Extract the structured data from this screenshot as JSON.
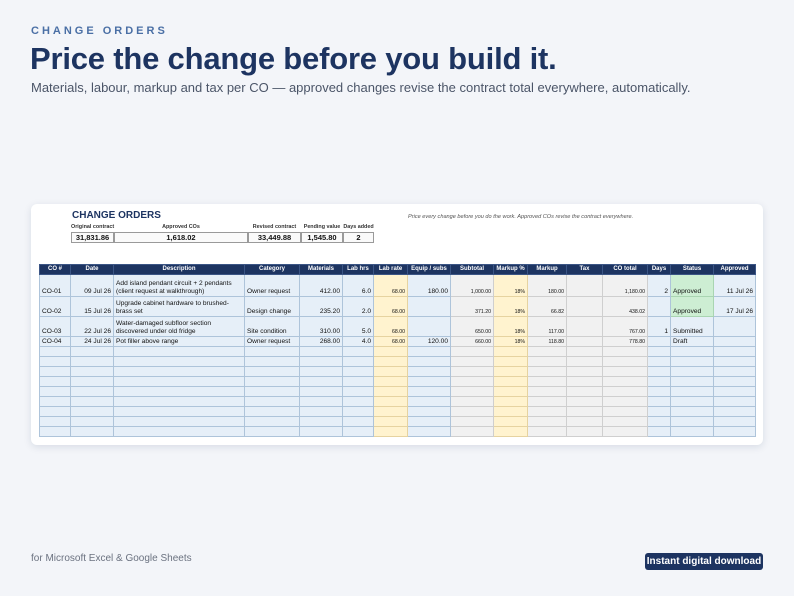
{
  "header": {
    "eyebrow": "CHANGE ORDERS",
    "title": "Price the change before you build it.",
    "subtitle": "Materials, labour, markup and tax per CO — approved changes revise the contract total everywhere, automatically."
  },
  "sheet": {
    "title": "CHANGE ORDERS",
    "note": "Price every change before you do the work. Approved COs revise the contract everywhere.",
    "summary": [
      {
        "label": "Original contract",
        "value": "31,831.86"
      },
      {
        "label": "Approved COs",
        "value": "1,618.02"
      },
      {
        "label": "Revised contract",
        "value": "33,449.88"
      },
      {
        "label": "Pending value",
        "value": "1,545.80"
      },
      {
        "label": "Days added",
        "value": "2"
      }
    ],
    "columns": [
      "CO #",
      "Date",
      "Description",
      "Category",
      "Materials",
      "Lab hrs",
      "Lab rate",
      "Equip / subs",
      "Subtotal",
      "Markup %",
      "Markup",
      "Tax",
      "CO total",
      "Days",
      "Status",
      "Approved"
    ],
    "rows": [
      {
        "co": "CO-01",
        "date": "09 Jul 26",
        "description": "Add island pendant circuit + 2 pendants (client request at walkthrough)",
        "category": "Owner request",
        "materials": "412.00",
        "lab_hrs": "6.0",
        "lab_rate": "68.00",
        "equip": "180.00",
        "subtotal": "1,000.00",
        "markup_pct": "18%",
        "markup": "180.00",
        "tax": "",
        "co_total": "1,180.00",
        "days": "2",
        "status": "Approved",
        "approved": "11 Jul 26"
      },
      {
        "co": "CO-02",
        "date": "15 Jul 26",
        "description": "Upgrade cabinet hardware to brushed-brass set",
        "category": "Design change",
        "materials": "235.20",
        "lab_hrs": "2.0",
        "lab_rate": "68.00",
        "equip": "",
        "subtotal": "371.20",
        "markup_pct": "18%",
        "markup": "66.82",
        "tax": "",
        "co_total": "438.02",
        "days": "",
        "status": "Approved",
        "approved": "17 Jul 26"
      },
      {
        "co": "CO-03",
        "date": "22 Jul 26",
        "description": "Water-damaged subfloor section discovered under old fridge",
        "category": "Site condition",
        "materials": "310.00",
        "lab_hrs": "5.0",
        "lab_rate": "68.00",
        "equip": "",
        "subtotal": "650.00",
        "markup_pct": "18%",
        "markup": "117.00",
        "tax": "",
        "co_total": "767.00",
        "days": "1",
        "status": "Submitted",
        "approved": ""
      },
      {
        "co": "CO-04",
        "date": "24 Jul 26",
        "description": "Pot filler above range",
        "category": "Owner request",
        "materials": "268.00",
        "lab_hrs": "4.0",
        "lab_rate": "68.00",
        "equip": "120.00",
        "subtotal": "660.00",
        "markup_pct": "18%",
        "markup": "118.80",
        "tax": "",
        "co_total": "778.80",
        "days": "",
        "status": "Draft",
        "approved": ""
      }
    ],
    "empty_row_count": 9
  },
  "footer": {
    "platform": "for Microsoft Excel & Google Sheets",
    "badge": "Instant digital download"
  },
  "colors": {
    "navy": "#1d3461",
    "accent": "#4a6fa5",
    "input_blue": "#e6eff8",
    "input_yellow": "#fff3cf",
    "calc_gray": "#f1f1f1",
    "approved_green": "#cdeed3"
  }
}
